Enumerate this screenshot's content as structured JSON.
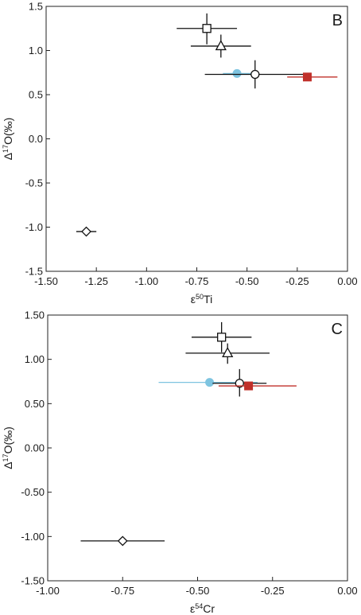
{
  "chart_data": [
    {
      "type": "scatter",
      "panel_label": "B",
      "xlabel_base": "ε",
      "xlabel_sup": "50",
      "xlabel_tail": "Ti",
      "ylabel_base": "Δ",
      "ylabel_sup": "17",
      "ylabel_tail": "O(‰)",
      "xlim": [
        -1.5,
        0.0
      ],
      "ylim": [
        -1.5,
        1.5
      ],
      "xticks": [
        -1.5,
        -1.25,
        -1.0,
        -0.75,
        -0.5,
        -0.25,
        0.0
      ],
      "xtick_labels": [
        "-1.50",
        "-1.25",
        "-1.00",
        "-0.75",
        "-0.50",
        "-0.25",
        "0.00"
      ],
      "yticks": [
        -1.5,
        -1.0,
        -0.5,
        0.0,
        0.5,
        1.0,
        1.5
      ],
      "ytick_labels": [
        "-1.5",
        "-1.0",
        "-0.5",
        "0.0",
        "0.5",
        "1.0",
        "1.5"
      ],
      "grid": false,
      "points": [
        {
          "marker": "square-open",
          "color": "#111111",
          "x": -0.7,
          "y": 1.25,
          "x_lo": -0.85,
          "x_hi": -0.55,
          "y_lo": 1.07,
          "y_hi": 1.42
        },
        {
          "marker": "triangle-open",
          "color": "#111111",
          "x": -0.63,
          "y": 1.05,
          "x_lo": -0.78,
          "x_hi": -0.48,
          "y_lo": 0.92,
          "y_hi": 1.18
        },
        {
          "marker": "circle-filled",
          "color": "#7ec4e0",
          "x": -0.55,
          "y": 0.74,
          "x_lo": -0.62,
          "x_hi": -0.47,
          "y_lo": 0.74,
          "y_hi": 0.74
        },
        {
          "marker": "circle-open",
          "color": "#111111",
          "x": -0.46,
          "y": 0.73,
          "x_lo": -0.71,
          "x_hi": -0.21,
          "y_lo": 0.57,
          "y_hi": 0.89
        },
        {
          "marker": "square-filled",
          "color": "#c0302a",
          "x": -0.2,
          "y": 0.7,
          "x_lo": -0.3,
          "x_hi": -0.05,
          "y_lo": 0.7,
          "y_hi": 0.7
        },
        {
          "marker": "diamond-open",
          "color": "#111111",
          "x": -1.3,
          "y": -1.05,
          "x_lo": -1.35,
          "x_hi": -1.25,
          "y_lo": -1.05,
          "y_hi": -1.05
        }
      ]
    },
    {
      "type": "scatter",
      "panel_label": "C",
      "xlabel_base": "ε",
      "xlabel_sup": "54",
      "xlabel_tail": "Cr",
      "ylabel_base": "Δ",
      "ylabel_sup": "17",
      "ylabel_tail": "O(‰)",
      "xlim": [
        -1.0,
        0.0
      ],
      "ylim": [
        -1.5,
        1.5
      ],
      "xticks": [
        -1.0,
        -0.75,
        -0.5,
        -0.25,
        0.0
      ],
      "xtick_labels": [
        "-1.00",
        "-0.75",
        "-0.50",
        "-0.25",
        "0.00"
      ],
      "yticks": [
        -1.5,
        -1.0,
        -0.5,
        0.0,
        0.5,
        1.0,
        1.5
      ],
      "ytick_labels": [
        "-1.50",
        "-1.00",
        "-0.50",
        "0.00",
        "0.50",
        "1.00",
        "1.50"
      ],
      "grid": false,
      "points": [
        {
          "marker": "square-open",
          "color": "#111111",
          "x": -0.42,
          "y": 1.25,
          "x_lo": -0.52,
          "x_hi": -0.32,
          "y_lo": 1.08,
          "y_hi": 1.42
        },
        {
          "marker": "triangle-open",
          "color": "#111111",
          "x": -0.4,
          "y": 1.07,
          "x_lo": -0.54,
          "x_hi": -0.26,
          "y_lo": 0.95,
          "y_hi": 1.18
        },
        {
          "marker": "circle-filled",
          "color": "#7ec4e0",
          "x": -0.46,
          "y": 0.74,
          "x_lo": -0.63,
          "x_hi": -0.3,
          "y_lo": 0.74,
          "y_hi": 0.74
        },
        {
          "marker": "circle-open",
          "color": "#111111",
          "x": -0.36,
          "y": 0.73,
          "x_lo": -0.45,
          "x_hi": -0.27,
          "y_lo": 0.58,
          "y_hi": 0.89
        },
        {
          "marker": "square-filled",
          "color": "#c0302a",
          "x": -0.33,
          "y": 0.7,
          "x_lo": -0.43,
          "x_hi": -0.17,
          "y_lo": 0.7,
          "y_hi": 0.7
        },
        {
          "marker": "diamond-open",
          "color": "#111111",
          "x": -0.75,
          "y": -1.05,
          "x_lo": -0.89,
          "x_hi": -0.61,
          "y_lo": -1.05,
          "y_hi": -1.05
        }
      ]
    }
  ]
}
